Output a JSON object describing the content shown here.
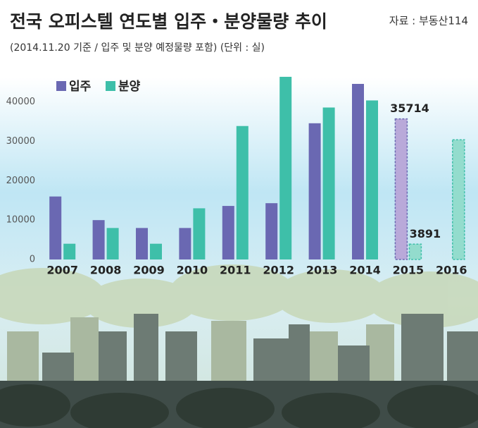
{
  "chart_data": {
    "type": "bar",
    "title": "전국 오피스텔 연도별 입주・분양물량 추이",
    "source": "자료 : 부동산114",
    "subtitle": "(2014.11.20 기준 / 입주 및 분양 예정물량 포함) (단위 : 실)",
    "categories": [
      "2007",
      "2008",
      "2009",
      "2010",
      "2011",
      "2012",
      "2013",
      "2014",
      "2015",
      "2016"
    ],
    "series": [
      {
        "name": "입주",
        "color": "#6a68b2",
        "projected_color": "#b9a9d9",
        "labeled_index": 8,
        "values": [
          16000,
          10000,
          8000,
          8000,
          13600,
          14300,
          34600,
          44600,
          35714,
          null
        ]
      },
      {
        "name": "분양",
        "color": "#3ebfa9",
        "projected_color": "#93dccd",
        "labeled_index": 8,
        "values": [
          4000,
          8000,
          4000,
          13000,
          33900,
          46400,
          38600,
          40400,
          3891,
          30400
        ]
      }
    ],
    "projected_from_index": 8,
    "ylim": [
      0,
      48000
    ],
    "yticks": [
      0,
      10000,
      20000,
      30000,
      40000
    ],
    "legend": "top-left",
    "grid": false
  }
}
